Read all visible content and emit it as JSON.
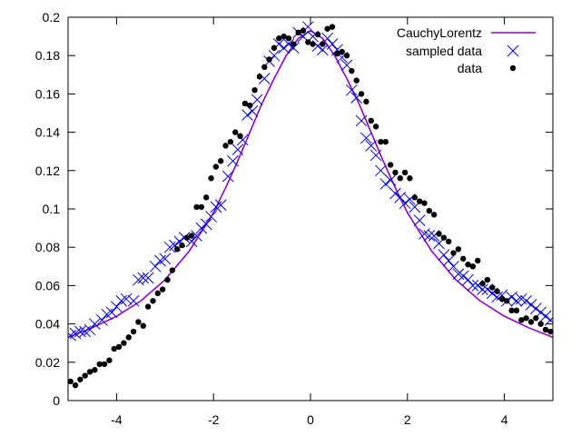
{
  "chart_data": {
    "type": "scatter",
    "xlim": [
      -5,
      5
    ],
    "ylim": [
      0,
      0.2
    ],
    "xticks": [
      -4,
      -2,
      0,
      2,
      4
    ],
    "xtick_labels": [
      "-4",
      "-2",
      "0",
      "2",
      "4"
    ],
    "yticks": [
      0,
      0.02,
      0.04,
      0.06,
      0.08,
      0.1,
      0.12,
      0.14,
      0.16,
      0.18,
      0.2
    ],
    "ytick_labels": [
      "0",
      "0.02",
      "0.04",
      "0.06",
      "0.08",
      "0.1",
      "0.12",
      "0.14",
      "0.16",
      "0.18",
      "0.2"
    ],
    "grid": false,
    "legend_position": "top-right",
    "series": [
      {
        "name": "CauchyLorentz",
        "kind": "line",
        "color": "#9400d3",
        "x": [
          -5.0,
          -4.5,
          -4.0,
          -3.5,
          -3.0,
          -2.5,
          -2.0,
          -1.75,
          -1.5,
          -1.25,
          -1.0,
          -0.75,
          -0.5,
          -0.25,
          0.0,
          0.25,
          0.5,
          0.75,
          1.0,
          1.25,
          1.5,
          1.75,
          2.0,
          2.5,
          3.0,
          3.5,
          4.0,
          4.5,
          5.0
        ],
        "y": [
          0.033,
          0.038,
          0.044,
          0.052,
          0.063,
          0.078,
          0.098,
          0.111,
          0.125,
          0.14,
          0.155,
          0.168,
          0.18,
          0.189,
          0.193,
          0.189,
          0.18,
          0.168,
          0.155,
          0.14,
          0.125,
          0.111,
          0.098,
          0.078,
          0.063,
          0.052,
          0.044,
          0.038,
          0.033
        ]
      },
      {
        "name": "sampled data",
        "kind": "cross",
        "color": "#0000ff",
        "x": [
          -4.95,
          -4.85,
          -4.75,
          -4.65,
          -4.55,
          -4.45,
          -4.3,
          -4.2,
          -4.1,
          -4.0,
          -3.9,
          -3.8,
          -3.65,
          -3.55,
          -3.45,
          -3.35,
          -3.2,
          -3.1,
          -3.0,
          -2.9,
          -2.8,
          -2.7,
          -2.6,
          -2.45,
          -2.35,
          -2.25,
          -2.15,
          -2.05,
          -1.95,
          -1.85,
          -1.7,
          -1.6,
          -1.5,
          -1.4,
          -1.3,
          -1.2,
          -1.1,
          -0.95,
          -0.85,
          -0.75,
          -0.65,
          -0.55,
          -0.45,
          -0.35,
          -0.25,
          -0.15,
          -0.05,
          0.05,
          0.15,
          0.25,
          0.35,
          0.45,
          0.55,
          0.65,
          0.75,
          0.85,
          0.95,
          1.05,
          1.15,
          1.25,
          1.35,
          1.45,
          1.55,
          1.65,
          1.75,
          1.85,
          1.95,
          2.05,
          2.15,
          2.25,
          2.35,
          2.45,
          2.55,
          2.65,
          2.75,
          2.85,
          2.95,
          3.05,
          3.15,
          3.25,
          3.35,
          3.45,
          3.55,
          3.65,
          3.75,
          3.85,
          3.95,
          4.05,
          4.15,
          4.25,
          4.35,
          4.45,
          4.55,
          4.65,
          4.75,
          4.85,
          4.95
        ],
        "y": [
          0.034,
          0.035,
          0.036,
          0.036,
          0.037,
          0.04,
          0.042,
          0.045,
          0.046,
          0.049,
          0.052,
          0.053,
          0.052,
          0.063,
          0.064,
          0.064,
          0.07,
          0.073,
          0.074,
          0.08,
          0.081,
          0.083,
          0.085,
          0.083,
          0.086,
          0.09,
          0.092,
          0.096,
          0.101,
          0.102,
          0.117,
          0.125,
          0.131,
          0.136,
          0.149,
          0.151,
          0.157,
          0.168,
          0.177,
          0.18,
          0.186,
          0.184,
          0.186,
          0.184,
          0.192,
          0.19,
          0.195,
          0.19,
          0.185,
          0.183,
          0.189,
          0.186,
          0.183,
          0.179,
          0.175,
          0.162,
          0.158,
          0.146,
          0.137,
          0.133,
          0.128,
          0.12,
          0.113,
          0.115,
          0.108,
          0.106,
          0.103,
          0.105,
          0.101,
          0.094,
          0.087,
          0.086,
          0.086,
          0.082,
          0.076,
          0.073,
          0.07,
          0.066,
          0.065,
          0.063,
          0.06,
          0.06,
          0.058,
          0.058,
          0.056,
          0.054,
          0.055,
          0.052,
          0.054,
          0.052,
          0.053,
          0.052,
          0.05,
          0.048,
          0.046,
          0.044,
          0.042
        ]
      },
      {
        "name": "data",
        "kind": "dot",
        "color": "#000000",
        "x": [
          -4.95,
          -4.85,
          -4.75,
          -4.65,
          -4.55,
          -4.45,
          -4.35,
          -4.25,
          -4.15,
          -4.05,
          -3.95,
          -3.85,
          -3.75,
          -3.65,
          -3.55,
          -3.45,
          -3.35,
          -3.25,
          -3.15,
          -3.05,
          -2.95,
          -2.85,
          -2.75,
          -2.65,
          -2.55,
          -2.45,
          -2.35,
          -2.25,
          -2.15,
          -2.05,
          -1.95,
          -1.85,
          -1.75,
          -1.65,
          -1.55,
          -1.45,
          -1.35,
          -1.25,
          -1.15,
          -1.05,
          -0.95,
          -0.85,
          -0.75,
          -0.65,
          -0.55,
          -0.45,
          -0.35,
          -0.25,
          -0.15,
          -0.05,
          0.05,
          0.15,
          0.25,
          0.35,
          0.45,
          0.55,
          0.65,
          0.75,
          0.85,
          0.95,
          1.05,
          1.15,
          1.25,
          1.35,
          1.45,
          1.55,
          1.65,
          1.75,
          1.85,
          1.95,
          2.05,
          2.15,
          2.25,
          2.35,
          2.45,
          2.55,
          2.65,
          2.75,
          2.85,
          2.95,
          3.05,
          3.15,
          3.25,
          3.35,
          3.45,
          3.55,
          3.65,
          3.75,
          3.85,
          3.95,
          4.05,
          4.15,
          4.25,
          4.35,
          4.45,
          4.55,
          4.65,
          4.75,
          4.85,
          4.95
        ],
        "y": [
          0.01,
          0.008,
          0.011,
          0.013,
          0.015,
          0.016,
          0.019,
          0.019,
          0.021,
          0.027,
          0.028,
          0.03,
          0.033,
          0.036,
          0.041,
          0.039,
          0.049,
          0.052,
          0.056,
          0.058,
          0.063,
          0.068,
          0.079,
          0.081,
          0.085,
          0.086,
          0.101,
          0.101,
          0.106,
          0.116,
          0.122,
          0.125,
          0.133,
          0.135,
          0.14,
          0.138,
          0.155,
          0.154,
          0.162,
          0.169,
          0.174,
          0.178,
          0.184,
          0.189,
          0.19,
          0.189,
          0.186,
          0.192,
          0.193,
          0.187,
          0.186,
          0.191,
          0.186,
          0.194,
          0.195,
          0.181,
          0.182,
          0.18,
          0.172,
          0.167,
          0.16,
          0.156,
          0.146,
          0.143,
          0.135,
          0.135,
          0.123,
          0.119,
          0.116,
          0.119,
          0.116,
          0.106,
          0.104,
          0.103,
          0.099,
          0.097,
          0.087,
          0.085,
          0.083,
          0.077,
          0.079,
          0.074,
          0.071,
          0.07,
          0.073,
          0.061,
          0.063,
          0.059,
          0.057,
          0.053,
          0.052,
          0.047,
          0.047,
          0.042,
          0.043,
          0.041,
          0.043,
          0.04,
          0.037,
          0.036
        ]
      }
    ]
  }
}
